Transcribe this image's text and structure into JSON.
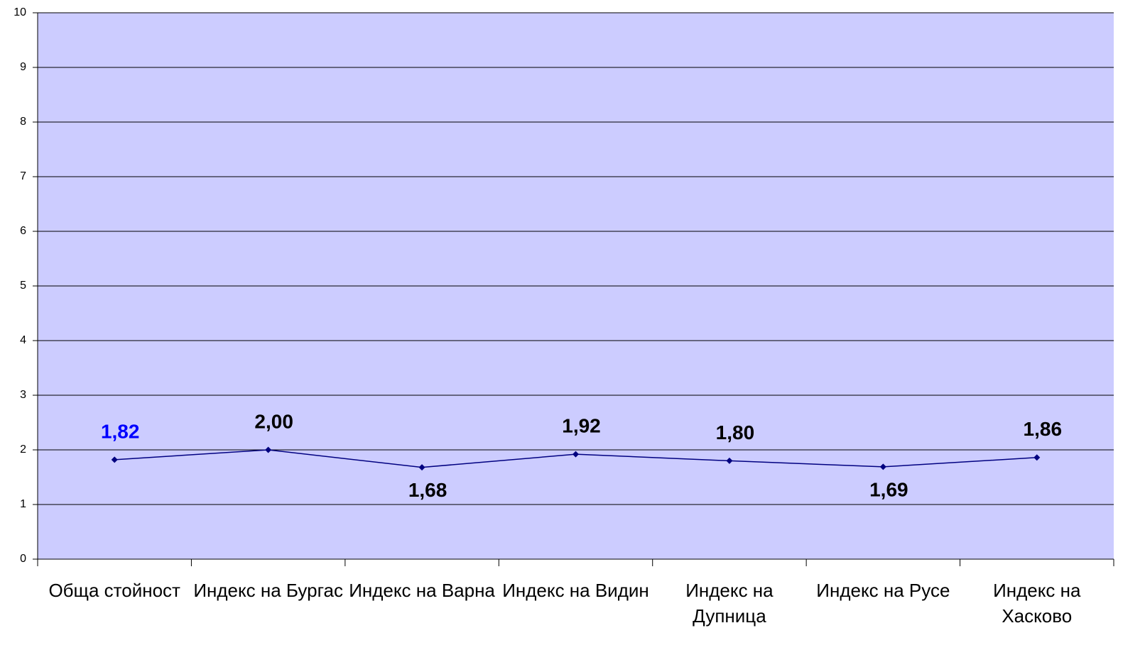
{
  "chart_data": {
    "type": "line",
    "categories": [
      "Обща стойност",
      "Индекс на Бургас",
      "Индекс на Варна",
      "Индекс на Видин",
      "Индекс на Дупница",
      "Индекс на Русе",
      "Индекс на Хасково"
    ],
    "series": [
      {
        "color": "#000080",
        "values": [
          1.82,
          2.0,
          1.68,
          1.92,
          1.8,
          1.69,
          1.86
        ],
        "value_labels": [
          "1,82",
          "2,00",
          "1,68",
          "1,92",
          "1,80",
          "1,69",
          "1,86"
        ],
        "value_label_colors": [
          "#0000ff",
          "#000000",
          "#000000",
          "#000000",
          "#000000",
          "#000000",
          "#000000"
        ]
      }
    ],
    "ylim": [
      0,
      10
    ],
    "yticks": [
      0,
      1,
      2,
      3,
      4,
      5,
      6,
      7,
      8,
      9,
      10
    ],
    "grid": true,
    "plot_background": "#ccccff"
  }
}
